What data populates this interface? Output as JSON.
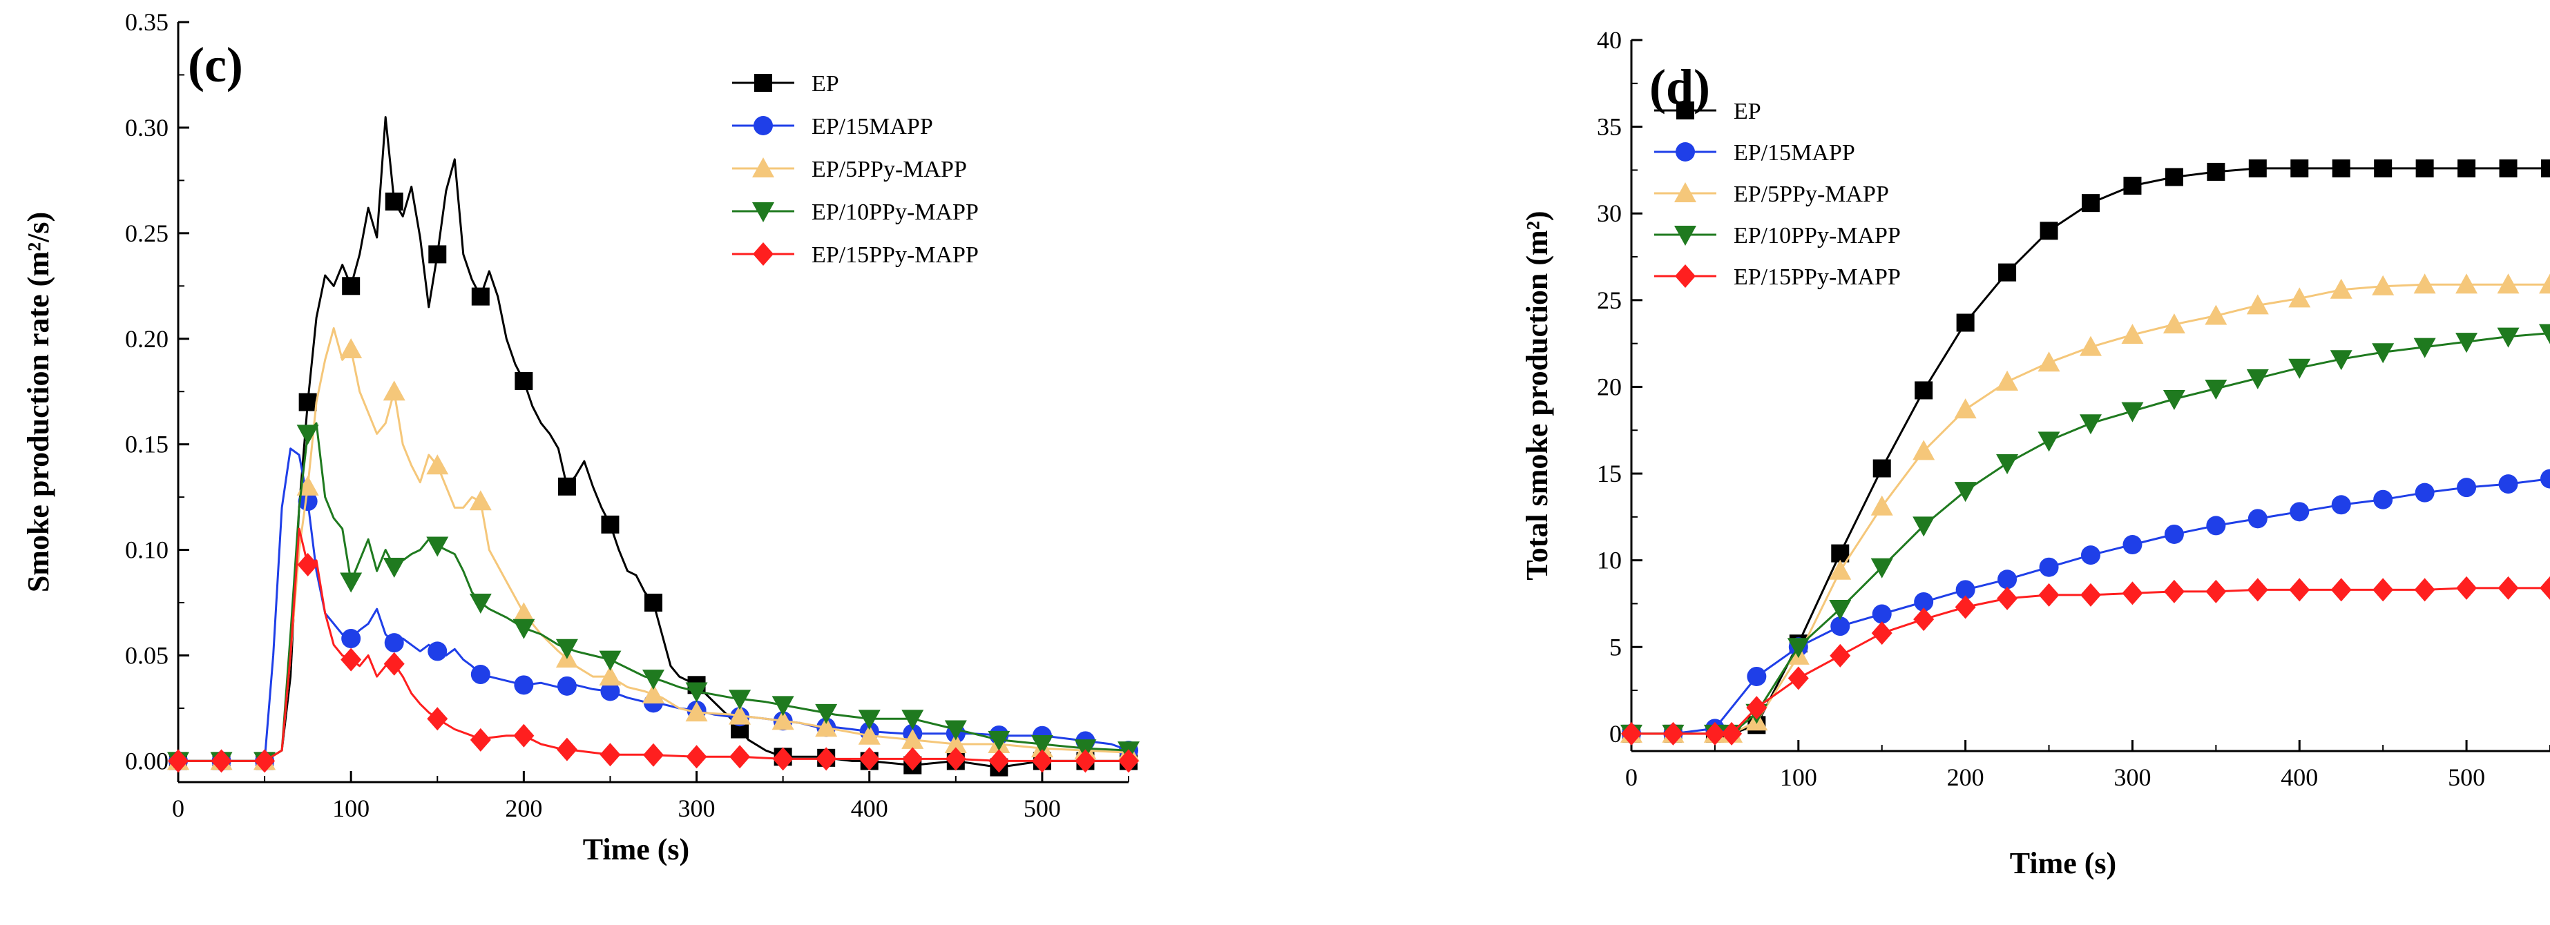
{
  "chart_data": [
    {
      "type": "line",
      "panel_label": "(c)",
      "xlabel": "Time (s)",
      "ylabel": "Smoke production rate (m²/s)",
      "xlim": [
        0,
        550
      ],
      "ylim": [
        -0.01,
        0.35
      ],
      "xticks": [
        "0",
        "100",
        "200",
        "300",
        "400",
        "500"
      ],
      "xtick_values": [
        0,
        100,
        200,
        300,
        400,
        500
      ],
      "yticks": [
        "0.00",
        "0.05",
        "0.10",
        "0.15",
        "0.20",
        "0.25",
        "0.30",
        "0.35"
      ],
      "ytick_values": [
        0,
        0.05,
        0.1,
        0.15,
        0.2,
        0.25,
        0.3,
        0.35
      ],
      "legend_position": "top-right",
      "series": [
        {
          "name": "EP",
          "color": "#000000",
          "marker": "square",
          "x": [
            0,
            25,
            50,
            60,
            65,
            70,
            75,
            80,
            85,
            90,
            95,
            100,
            105,
            110,
            115,
            120,
            125,
            130,
            135,
            140,
            145,
            150,
            155,
            160,
            165,
            170,
            175,
            180,
            185,
            190,
            195,
            200,
            205,
            210,
            215,
            220,
            225,
            230,
            235,
            240,
            245,
            250,
            255,
            260,
            265,
            270,
            275,
            280,
            285,
            290,
            295,
            300,
            310,
            320,
            330,
            340,
            350,
            360,
            370,
            380,
            390,
            400,
            425,
            450,
            475,
            500,
            525,
            550
          ],
          "y": [
            0,
            0,
            0,
            0.005,
            0.04,
            0.12,
            0.17,
            0.21,
            0.23,
            0.225,
            0.235,
            0.225,
            0.24,
            0.262,
            0.248,
            0.305,
            0.265,
            0.258,
            0.272,
            0.248,
            0.215,
            0.24,
            0.27,
            0.285,
            0.24,
            0.228,
            0.22,
            0.232,
            0.22,
            0.2,
            0.188,
            0.18,
            0.168,
            0.16,
            0.155,
            0.148,
            0.13,
            0.135,
            0.142,
            0.13,
            0.12,
            0.112,
            0.1,
            0.09,
            0.088,
            0.08,
            0.075,
            0.06,
            0.045,
            0.04,
            0.038,
            0.036,
            0.028,
            0.02,
            0.01,
            0.005,
            0.002,
            0.002,
            0.002,
            0.001,
            0.0,
            0.0,
            -0.002,
            0.0,
            -0.003,
            0.0,
            0.0,
            0.0
          ],
          "marker_x": [
            0,
            25,
            50,
            75,
            100,
            125,
            150,
            175,
            200,
            225,
            250,
            275,
            300,
            325,
            350,
            375,
            400,
            425,
            450,
            475,
            500,
            525,
            550
          ]
        },
        {
          "name": "EP/15MAPP",
          "color": "#1f3fe8",
          "marker": "circle",
          "x": [
            0,
            25,
            50,
            55,
            60,
            65,
            70,
            75,
            80,
            85,
            90,
            95,
            100,
            105,
            110,
            115,
            120,
            125,
            130,
            135,
            140,
            145,
            150,
            155,
            160,
            165,
            170,
            175,
            180,
            190,
            200,
            210,
            220,
            230,
            240,
            250,
            260,
            270,
            280,
            290,
            300,
            310,
            320,
            330,
            340,
            350,
            360,
            370,
            380,
            390,
            400,
            420,
            440,
            460,
            480,
            500,
            520,
            540,
            550
          ],
          "y": [
            0,
            0,
            0,
            0.05,
            0.12,
            0.148,
            0.145,
            0.123,
            0.09,
            0.07,
            0.065,
            0.06,
            0.058,
            0.062,
            0.065,
            0.072,
            0.06,
            0.056,
            0.058,
            0.055,
            0.052,
            0.055,
            0.052,
            0.05,
            0.053,
            0.048,
            0.045,
            0.041,
            0.04,
            0.038,
            0.036,
            0.037,
            0.035,
            0.036,
            0.034,
            0.033,
            0.03,
            0.028,
            0.027,
            0.025,
            0.024,
            0.022,
            0.021,
            0.021,
            0.02,
            0.019,
            0.018,
            0.016,
            0.016,
            0.015,
            0.014,
            0.013,
            0.013,
            0.013,
            0.012,
            0.012,
            0.01,
            0.008,
            0.005
          ],
          "marker_x": [
            0,
            25,
            50,
            75,
            100,
            125,
            150,
            175,
            200,
            225,
            250,
            275,
            300,
            325,
            350,
            375,
            400,
            425,
            450,
            475,
            500,
            525,
            550
          ]
        },
        {
          "name": "EP/5PPy-MAPP",
          "color": "#f5c77a",
          "marker": "triangle-up",
          "x": [
            0,
            25,
            50,
            60,
            65,
            70,
            75,
            80,
            85,
            90,
            95,
            100,
            105,
            110,
            115,
            120,
            125,
            130,
            135,
            140,
            145,
            150,
            155,
            160,
            165,
            170,
            175,
            180,
            190,
            200,
            210,
            220,
            230,
            240,
            250,
            260,
            270,
            280,
            290,
            300,
            320,
            340,
            360,
            380,
            400,
            425,
            450,
            475,
            500,
            525,
            550
          ],
          "y": [
            0,
            0,
            0,
            0.005,
            0.05,
            0.1,
            0.13,
            0.17,
            0.19,
            0.205,
            0.19,
            0.195,
            0.175,
            0.165,
            0.155,
            0.16,
            0.175,
            0.15,
            0.14,
            0.132,
            0.145,
            0.14,
            0.13,
            0.12,
            0.12,
            0.125,
            0.123,
            0.1,
            0.085,
            0.07,
            0.06,
            0.052,
            0.045,
            0.04,
            0.04,
            0.035,
            0.033,
            0.03,
            0.025,
            0.023,
            0.022,
            0.02,
            0.018,
            0.015,
            0.012,
            0.01,
            0.008,
            0.008,
            0.006,
            0.005,
            0.004
          ],
          "marker_x": [
            0,
            25,
            50,
            75,
            100,
            125,
            150,
            175,
            200,
            225,
            250,
            275,
            300,
            325,
            350,
            375,
            400,
            425,
            450,
            475,
            500,
            525,
            550
          ]
        },
        {
          "name": "EP/10PPy-MAPP",
          "color": "#1f7a1f",
          "marker": "triangle-down",
          "x": [
            0,
            25,
            50,
            60,
            65,
            70,
            75,
            80,
            85,
            90,
            95,
            100,
            105,
            110,
            115,
            120,
            125,
            130,
            135,
            140,
            145,
            150,
            155,
            160,
            165,
            170,
            175,
            180,
            190,
            200,
            210,
            220,
            230,
            240,
            250,
            260,
            270,
            280,
            290,
            300,
            320,
            340,
            360,
            380,
            400,
            425,
            450,
            475,
            500,
            525,
            550
          ],
          "y": [
            0,
            0,
            0,
            0.005,
            0.06,
            0.12,
            0.155,
            0.16,
            0.125,
            0.115,
            0.11,
            0.085,
            0.095,
            0.105,
            0.09,
            0.1,
            0.092,
            0.095,
            0.098,
            0.1,
            0.105,
            0.102,
            0.1,
            0.098,
            0.09,
            0.08,
            0.075,
            0.072,
            0.068,
            0.063,
            0.06,
            0.055,
            0.052,
            0.05,
            0.048,
            0.044,
            0.04,
            0.038,
            0.035,
            0.033,
            0.03,
            0.028,
            0.025,
            0.022,
            0.02,
            0.02,
            0.015,
            0.01,
            0.008,
            0.006,
            0.005
          ],
          "marker_x": [
            0,
            25,
            50,
            75,
            100,
            125,
            150,
            175,
            200,
            225,
            250,
            275,
            300,
            325,
            350,
            375,
            400,
            425,
            450,
            475,
            500,
            525,
            550
          ]
        },
        {
          "name": "EP/15PPy-MAPP",
          "color": "#ff1f1f",
          "marker": "diamond",
          "x": [
            0,
            25,
            50,
            60,
            65,
            70,
            75,
            80,
            85,
            90,
            95,
            100,
            105,
            110,
            115,
            120,
            125,
            130,
            135,
            140,
            145,
            150,
            160,
            170,
            175,
            180,
            190,
            200,
            210,
            220,
            230,
            240,
            250,
            270,
            300,
            325,
            350,
            375,
            400,
            425,
            450,
            475,
            500,
            525,
            550
          ],
          "y": [
            0,
            0,
            0,
            0.005,
            0.05,
            0.11,
            0.093,
            0.095,
            0.07,
            0.055,
            0.05,
            0.048,
            0.045,
            0.05,
            0.04,
            0.045,
            0.046,
            0.04,
            0.032,
            0.027,
            0.023,
            0.02,
            0.015,
            0.012,
            0.01,
            0.011,
            0.012,
            0.012,
            0.008,
            0.006,
            0.005,
            0.004,
            0.003,
            0.003,
            0.002,
            0.002,
            0.001,
            0.001,
            0.001,
            0.001,
            0.001,
            0.0,
            0.0,
            0.0,
            0.0
          ],
          "marker_x": [
            0,
            25,
            50,
            75,
            100,
            125,
            150,
            175,
            200,
            225,
            250,
            275,
            300,
            325,
            350,
            375,
            400,
            425,
            450,
            475,
            500,
            525,
            550
          ]
        }
      ]
    },
    {
      "type": "line",
      "panel_label": "(d)",
      "xlabel": "Time (s)",
      "ylabel": "Total smoke production (m²)",
      "xlim": [
        0,
        550
      ],
      "ylim": [
        -1,
        40
      ],
      "xticks": [
        "0",
        "100",
        "200",
        "300",
        "400",
        "500"
      ],
      "xtick_values": [
        0,
        100,
        200,
        300,
        400,
        500
      ],
      "yticks": [
        "0",
        "5",
        "10",
        "15",
        "20",
        "25",
        "30",
        "35",
        "40"
      ],
      "ytick_values": [
        0,
        5,
        10,
        15,
        20,
        25,
        30,
        35,
        40
      ],
      "legend_position": "top-left",
      "series": [
        {
          "name": "EP",
          "color": "#000000",
          "marker": "square",
          "x": [
            0,
            25,
            50,
            60,
            75,
            100,
            125,
            150,
            175,
            200,
            225,
            250,
            275,
            300,
            325,
            350,
            375,
            400,
            425,
            450,
            475,
            500,
            525,
            550
          ],
          "y": [
            0,
            0,
            0,
            0,
            0.5,
            5.2,
            10.4,
            15.3,
            19.8,
            23.7,
            26.6,
            29.0,
            30.6,
            31.6,
            32.1,
            32.4,
            32.6,
            32.6,
            32.6,
            32.6,
            32.6,
            32.6,
            32.6,
            32.6
          ],
          "marker_x": [
            0,
            25,
            50,
            75,
            100,
            125,
            150,
            175,
            200,
            225,
            250,
            275,
            300,
            325,
            350,
            375,
            400,
            425,
            450,
            475,
            500,
            525,
            550
          ]
        },
        {
          "name": "EP/15MAPP",
          "color": "#1f3fe8",
          "marker": "circle",
          "x": [
            0,
            25,
            50,
            75,
            100,
            125,
            150,
            175,
            200,
            225,
            250,
            275,
            300,
            325,
            350,
            375,
            400,
            425,
            450,
            475,
            500,
            525,
            550
          ],
          "y": [
            0,
            0,
            0.3,
            3.3,
            5.0,
            6.2,
            6.9,
            7.6,
            8.3,
            8.9,
            9.6,
            10.3,
            10.9,
            11.5,
            12.0,
            12.4,
            12.8,
            13.2,
            13.5,
            13.9,
            14.2,
            14.4,
            14.7
          ]
        },
        {
          "name": "EP/5PPy-MAPP",
          "color": "#f5c77a",
          "marker": "triangle-up",
          "x": [
            0,
            25,
            50,
            60,
            75,
            100,
            125,
            150,
            175,
            200,
            225,
            250,
            275,
            300,
            325,
            350,
            375,
            400,
            425,
            450,
            475,
            500,
            525,
            550
          ],
          "y": [
            0,
            0,
            0,
            0,
            0.7,
            4.5,
            9.4,
            13.1,
            16.3,
            18.7,
            20.3,
            21.4,
            22.3,
            23.0,
            23.6,
            24.1,
            24.7,
            25.1,
            25.6,
            25.8,
            25.9,
            25.9,
            25.9,
            25.9
          ]
        },
        {
          "name": "EP/10PPy-MAPP",
          "color": "#1f7a1f",
          "marker": "triangle-down",
          "x": [
            0,
            25,
            50,
            60,
            75,
            100,
            125,
            150,
            175,
            200,
            225,
            250,
            275,
            300,
            325,
            350,
            375,
            400,
            425,
            450,
            475,
            500,
            525,
            550
          ],
          "y": [
            0,
            0,
            0,
            0,
            1.2,
            5.0,
            7.2,
            9.6,
            12.0,
            14.0,
            15.6,
            16.9,
            17.9,
            18.6,
            19.3,
            19.9,
            20.5,
            21.1,
            21.6,
            22.0,
            22.3,
            22.6,
            22.9,
            23.1
          ]
        },
        {
          "name": "EP/15PPy-MAPP",
          "color": "#ff1f1f",
          "marker": "diamond",
          "x": [
            0,
            25,
            50,
            60,
            75,
            100,
            125,
            150,
            175,
            200,
            225,
            250,
            275,
            300,
            325,
            350,
            375,
            400,
            425,
            450,
            475,
            500,
            525,
            550
          ],
          "y": [
            0,
            0,
            0,
            0,
            1.5,
            3.2,
            4.5,
            5.8,
            6.6,
            7.3,
            7.8,
            8.0,
            8.0,
            8.1,
            8.2,
            8.2,
            8.3,
            8.3,
            8.3,
            8.3,
            8.3,
            8.4,
            8.4,
            8.4
          ]
        }
      ]
    }
  ]
}
